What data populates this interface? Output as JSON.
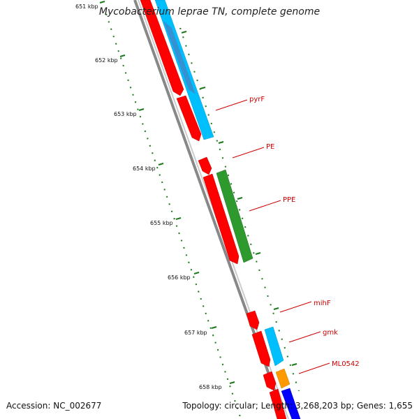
{
  "title": "Mycobacterium leprae TN, complete genome",
  "footer": {
    "accession": "Accession: NC_002677",
    "topology": "Topology: circular; Length: 3,268,203 bp; Genes: 1,655"
  },
  "ruler": {
    "labels": [
      "651 kbp",
      "652 kbp",
      "653 kbp",
      "654 kbp",
      "655 kbp",
      "656 kbp",
      "657 kbp",
      "658 kbp"
    ]
  },
  "gene_labels": [
    "pyrF",
    "PE",
    "PPE",
    "mihF",
    "gmk",
    "ML0542"
  ],
  "colors": {
    "cds": "#ff0000",
    "cds_alt": "#00bfff",
    "pe_ppe": "#2e9a2e",
    "orange": "#ff9900",
    "blue": "#0000ff",
    "backbone": "#888888",
    "tick": "#1a7a1a",
    "label": "#cc0000"
  }
}
